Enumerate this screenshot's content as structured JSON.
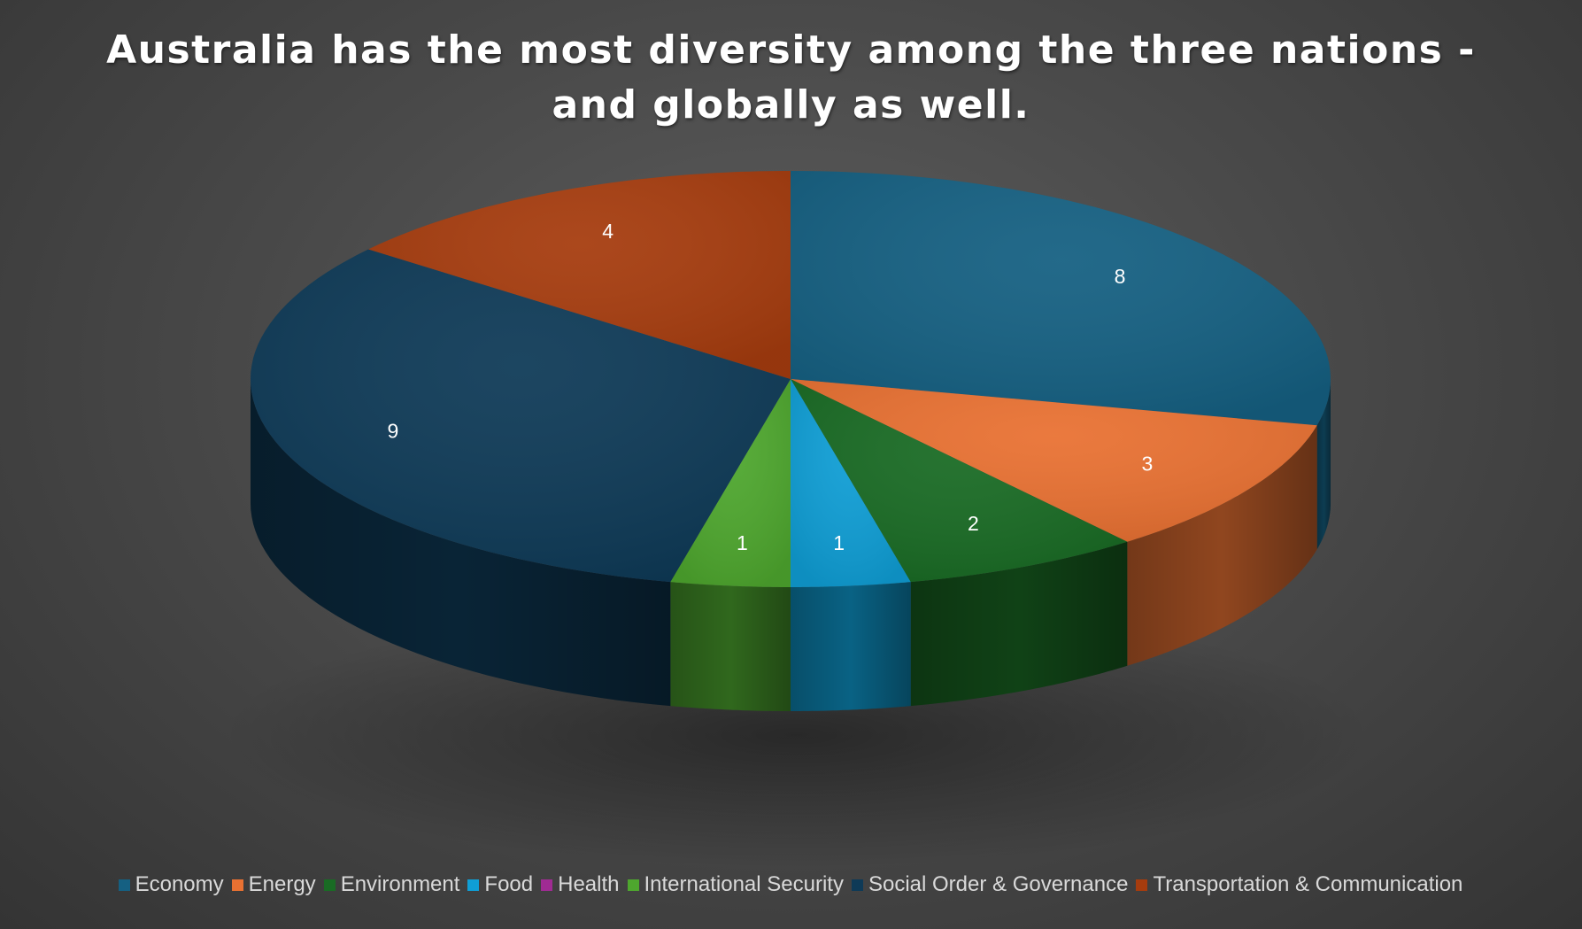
{
  "chart_data": {
    "type": "pie",
    "style": "3d",
    "title_lines": [
      "Australia has the most diversity among the three nations -",
      "and globally as well."
    ],
    "categories": [
      "Economy",
      "Energy",
      "Environment",
      "Food",
      "Health",
      "International Security",
      "Social Order & Governance",
      "Transportation & Communication"
    ],
    "values": [
      8,
      3,
      2,
      1,
      0,
      1,
      9,
      4
    ],
    "colors": [
      "#156082",
      "#E97132",
      "#196B24",
      "#0F9ED5",
      "#A02B93",
      "#4EA72E",
      "#0E3A57",
      "#A63C0E"
    ],
    "data_labels": [
      "8",
      "3",
      "2",
      "1",
      "",
      "1",
      "9",
      "4"
    ],
    "legend_position": "bottom",
    "background": "dark-gray"
  }
}
